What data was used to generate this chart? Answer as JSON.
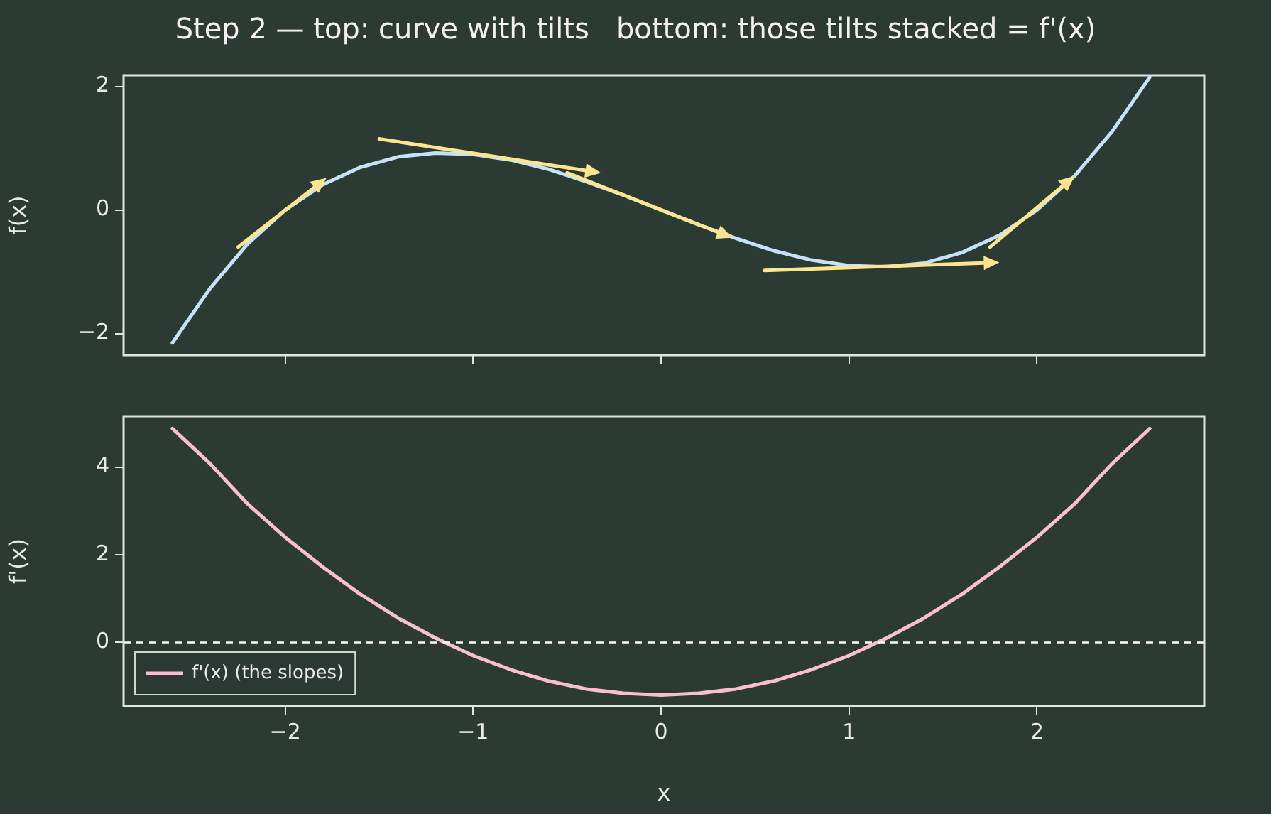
{
  "chart_data": [
    {
      "type": "line",
      "title": "Step 2 — top: curve with tilts   bottom: those tilts stacked = f'(x)",
      "ylabel": "f(x)",
      "xlim": [
        -2.86,
        2.89
      ],
      "ylim": [
        -2.35,
        2.18
      ],
      "xticks": [
        -2,
        -1,
        0,
        1,
        2
      ],
      "yticks": [
        -2,
        0,
        2
      ],
      "tick_labels": "y",
      "grid": false,
      "legend": false,
      "marker": "none",
      "series": [
        {
          "color": "#c6e2f7",
          "x": [
            -2.6,
            -2.4,
            -2.2,
            -2.0,
            -1.8,
            -1.6,
            -1.4,
            -1.2,
            -1.0,
            -0.8,
            -0.6,
            -0.4,
            -0.2,
            0,
            0.2,
            0.4,
            0.6,
            0.8,
            1.0,
            1.2,
            1.4,
            1.6,
            1.8,
            2.0,
            2.2,
            2.4,
            2.6
          ],
          "values": [
            -2.15,
            -1.27,
            -0.55,
            0,
            0.41,
            0.69,
            0.86,
            0.92,
            0.9,
            0.81,
            0.66,
            0.46,
            0.24,
            0,
            -0.24,
            -0.46,
            -0.66,
            -0.81,
            -0.9,
            -0.92,
            -0.86,
            -0.69,
            -0.41,
            0,
            0.55,
            1.27,
            2.15
          ]
        }
      ]
    },
    {
      "type": "line",
      "xlabel": "x",
      "ylabel": "f'(x)",
      "xlim": [
        -2.86,
        2.89
      ],
      "ylim": [
        -1.45,
        5.16
      ],
      "xticks": [
        -2,
        -1,
        0,
        1,
        2
      ],
      "yticks": [
        0,
        2,
        4
      ],
      "grid": false,
      "legend": "bottom left",
      "marker": "none",
      "ref_lines": [
        {
          "axis": "y",
          "value": 0,
          "color": "#ffffff",
          "line_style": "dashed"
        }
      ],
      "series": [
        {
          "name": "f'(x) (the slopes)",
          "color": "#f9bfd0",
          "x": [
            -2.6,
            -2.4,
            -2.2,
            -2.0,
            -1.8,
            -1.6,
            -1.4,
            -1.2,
            -1.0,
            -0.8,
            -0.6,
            -0.4,
            -0.2,
            0,
            0.2,
            0.4,
            0.6,
            0.8,
            1.0,
            1.2,
            1.4,
            1.6,
            1.8,
            2.0,
            2.2,
            2.4,
            2.6
          ],
          "values": [
            4.88,
            4.08,
            3.16,
            2.4,
            1.72,
            1.1,
            0.56,
            0.1,
            -0.3,
            -0.62,
            -0.88,
            -1.06,
            -1.16,
            -1.2,
            -1.16,
            -1.06,
            -0.88,
            -0.62,
            -0.3,
            0.1,
            0.56,
            1.1,
            1.72,
            2.4,
            3.16,
            4.08,
            4.88
          ]
        }
      ]
    }
  ]
}
